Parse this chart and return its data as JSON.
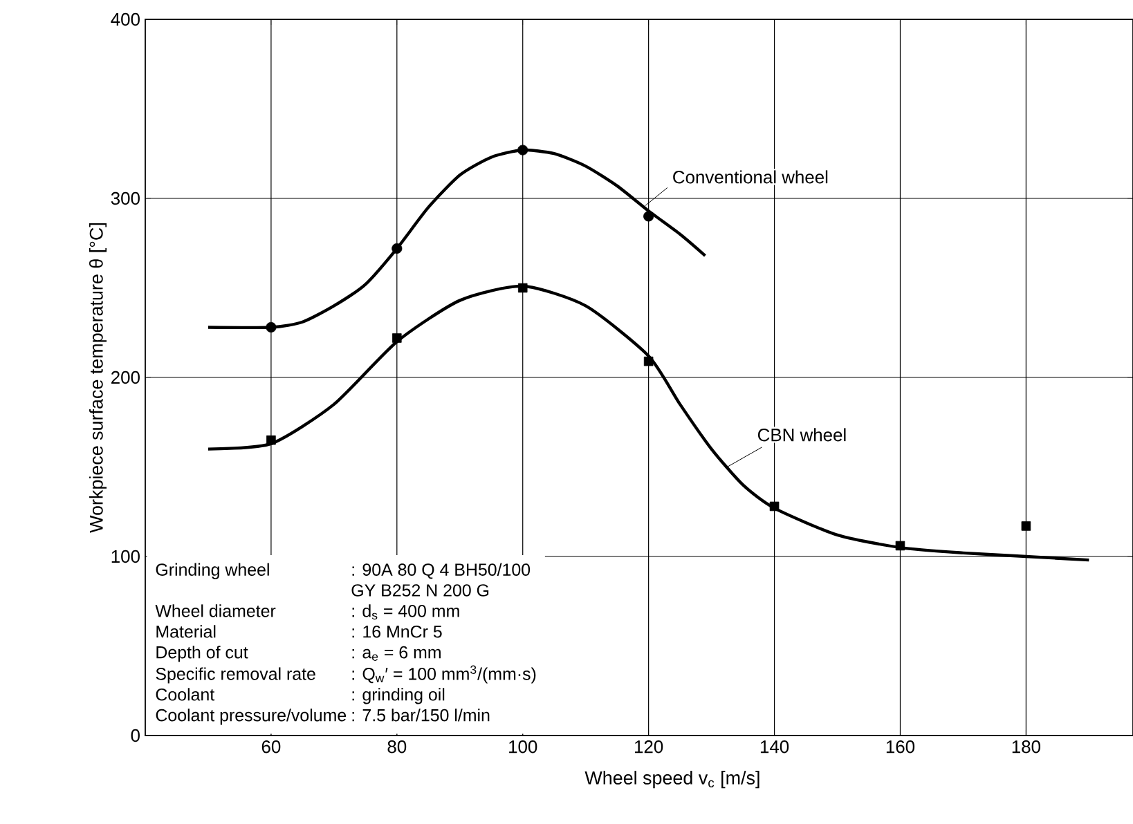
{
  "chart_data": {
    "type": "scatter",
    "xlabel": "Wheel speed v$_{c}$ [m/s]",
    "ylabel": "Workpiece surface temperature θ [°C]",
    "xlim": [
      40,
      197
    ],
    "ylim": [
      0,
      400
    ],
    "xticks": [
      60,
      80,
      100,
      120,
      140,
      160,
      180
    ],
    "yticks": [
      0,
      100,
      200,
      300,
      400
    ],
    "grid": true,
    "series": [
      {
        "marker": "circle",
        "color": "#000000",
        "x": [
          60,
          80,
          100,
          120
        ],
        "values": [
          228,
          272,
          327,
          290
        ]
      },
      {
        "marker": "square",
        "color": "#000000",
        "x": [
          60,
          80,
          100,
          120,
          140,
          160,
          180
        ],
        "values": [
          165,
          222,
          250,
          209,
          128,
          106,
          117
        ]
      },
      {
        "name": "Conventional wheel",
        "type": "line",
        "color": "#000000",
        "x": [
          50,
          60,
          65,
          70,
          75,
          80,
          85,
          90,
          95,
          100,
          105,
          110,
          115,
          120,
          125,
          129
        ],
        "values": [
          228,
          228,
          231,
          240,
          252,
          272,
          295,
          313,
          323,
          327,
          325,
          318,
          307,
          293,
          280,
          268
        ]
      },
      {
        "name": "CBN wheel",
        "type": "line",
        "color": "#000000",
        "x": [
          50,
          60,
          70,
          80,
          90,
          100,
          110,
          120,
          125,
          130,
          135,
          140,
          150,
          160,
          170,
          180,
          190
        ],
        "values": [
          160,
          163,
          185,
          220,
          243,
          251,
          240,
          212,
          185,
          160,
          140,
          127,
          112,
          105,
          102,
          100,
          98
        ]
      }
    ],
    "annotations": [
      "Grinding wheel",
      ": 90A 80 Q 4 BH50/100",
      "GY B252 N 200 G",
      "Wheel diameter",
      ": d$_{s}$ = 400 mm",
      "Material",
      ": 16 MnCr 5",
      "Depth of cut",
      ": a$_{e}$ = 6 mm",
      "Specific removal rate",
      ": Q$_{w}$′ = 100 mm$^{3}$/(mm·s)",
      "Coolant",
      ": grinding oil",
      "Coolant pressure/volume",
      ": 7.5 bar/150 l/min"
    ]
  }
}
